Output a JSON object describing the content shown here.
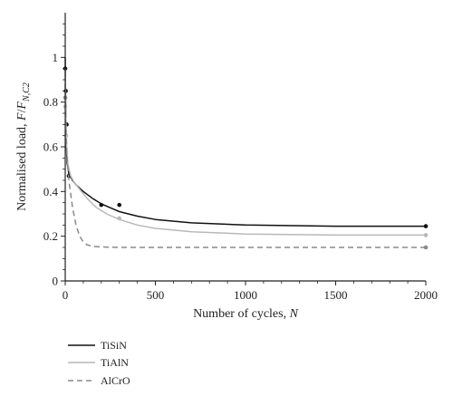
{
  "chart_data": {
    "type": "line",
    "xlabel": {
      "text": "Number of cycles, ",
      "var": "N"
    },
    "ylabel": {
      "text": "Normalised load, ",
      "f1": "F",
      "slash": "/",
      "f2": "F",
      "sub": "N,C2"
    },
    "xlim": [
      0,
      2000
    ],
    "ylim": [
      0,
      1.2
    ],
    "x_ticks": [
      0,
      500,
      1000,
      1500,
      2000
    ],
    "y_ticks": [
      0,
      0.2,
      0.4,
      0.6,
      0.8,
      1
    ],
    "x_tick_labels": [
      "0",
      "500",
      "1000",
      "1500",
      "2000"
    ],
    "y_tick_labels": [
      "0",
      "0.2",
      "0.4",
      "0.6",
      "0.8",
      "1"
    ],
    "legend_position": "bottom-left",
    "series": [
      {
        "name": "TiSiN",
        "color": "#111111",
        "style": "solid",
        "curve": {
          "x": [
            0,
            2,
            5,
            10,
            20,
            40,
            60,
            100,
            150,
            200,
            300,
            400,
            500,
            700,
            1000,
            1500,
            2000
          ],
          "y": [
            1.0,
            0.8,
            0.63,
            0.53,
            0.48,
            0.45,
            0.43,
            0.4,
            0.37,
            0.345,
            0.31,
            0.29,
            0.275,
            0.26,
            0.25,
            0.245,
            0.245
          ]
        },
        "markers": {
          "x": [
            0,
            3,
            8,
            20,
            200,
            300,
            2000
          ],
          "y": [
            0.95,
            0.85,
            0.7,
            0.47,
            0.34,
            0.34,
            0.245
          ]
        }
      },
      {
        "name": "TiAlN",
        "color": "#b8b8b8",
        "style": "solid",
        "curve": {
          "x": [
            0,
            3,
            8,
            15,
            30,
            50,
            80,
            120,
            170,
            230,
            300,
            400,
            500,
            700,
            1000,
            1500,
            2000
          ],
          "y": [
            0.95,
            0.75,
            0.6,
            0.52,
            0.47,
            0.44,
            0.41,
            0.37,
            0.33,
            0.3,
            0.275,
            0.25,
            0.235,
            0.22,
            0.21,
            0.205,
            0.205
          ]
        },
        "markers": {
          "x": [
            0,
            5,
            300,
            2000
          ],
          "y": [
            0.78,
            0.65,
            0.28,
            0.205
          ]
        }
      },
      {
        "name": "AlCrO",
        "color": "#8a8a8a",
        "style": "dashed",
        "curve": {
          "x": [
            0,
            3,
            10,
            20,
            40,
            60,
            80,
            100,
            120,
            150,
            200,
            300,
            500,
            1000,
            1500,
            2000
          ],
          "y": [
            0.88,
            0.7,
            0.55,
            0.45,
            0.33,
            0.25,
            0.2,
            0.175,
            0.162,
            0.155,
            0.152,
            0.15,
            0.15,
            0.15,
            0.15,
            0.15
          ]
        },
        "markers": {
          "x": [
            0,
            2000
          ],
          "y": [
            0.82,
            0.15
          ]
        }
      }
    ]
  }
}
